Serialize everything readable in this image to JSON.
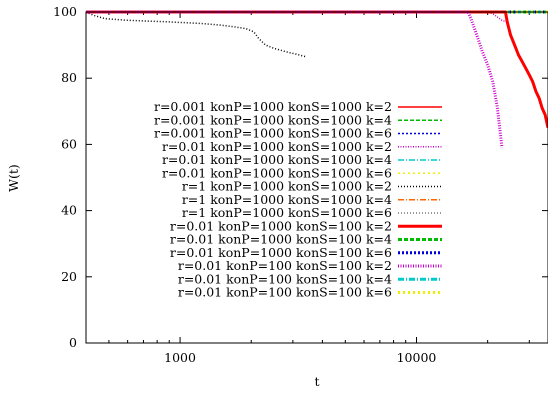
{
  "chart_data": {
    "type": "line",
    "xlabel": "t",
    "ylabel": "W(t)",
    "xscale": "log",
    "xlim": [
      400,
      36000
    ],
    "ylim": [
      0,
      100
    ],
    "x_ticks": [
      {
        "value": 1000,
        "label": "1000"
      },
      {
        "value": 10000,
        "label": "10000"
      }
    ],
    "y_ticks": [
      {
        "value": 0,
        "label": "0"
      },
      {
        "value": 20,
        "label": "20"
      },
      {
        "value": 40,
        "label": "40"
      },
      {
        "value": 60,
        "label": "60"
      },
      {
        "value": 80,
        "label": "80"
      },
      {
        "value": 100,
        "label": "100"
      }
    ],
    "legend_position": "center-right",
    "series": [
      {
        "name": "r=0.001 konP=1000 konS=1000 k=2",
        "color": "#ff0000",
        "dash": "",
        "width": 1.5,
        "x": [
          400,
          36000
        ],
        "y": [
          100,
          100
        ]
      },
      {
        "name": "r=0.001 konP=1000 konS=1000 k=4",
        "color": "#00bb00",
        "dash": "4,2",
        "width": 1.5,
        "x": [
          400,
          36000
        ],
        "y": [
          100,
          100
        ]
      },
      {
        "name": "r=0.001 konP=1000 konS=1000 k=6",
        "color": "#0000dd",
        "dash": "2,2",
        "width": 1.5,
        "x": [
          400,
          36000
        ],
        "y": [
          100,
          100
        ]
      },
      {
        "name": "r=0.01 konP=1000 konS=1000 k=2",
        "color": "#cc00cc",
        "dash": "1,1.5",
        "width": 1.5,
        "x": [
          400,
          20000,
          21000,
          22000,
          23000,
          24000
        ],
        "y": [
          100,
          100,
          99.5,
          98.5,
          97.5,
          97
        ]
      },
      {
        "name": "r=0.01 konP=1000 konS=1000 k=4",
        "color": "#00cccc",
        "dash": "6,2,1,2",
        "width": 1.5,
        "x": [
          400,
          36000
        ],
        "y": [
          100,
          100
        ]
      },
      {
        "name": "r=0.01 konP=1000 konS=1000 k=6",
        "color": "#eeee00",
        "dash": "2,3",
        "width": 1.5,
        "x": [
          400,
          36000
        ],
        "y": [
          100,
          100
        ]
      },
      {
        "name": "r=1 konP=1000 konS=1000 k=2",
        "color": "#000000",
        "dash": "1,2",
        "width": 1.5,
        "x": [
          400,
          430,
          480,
          600,
          900,
          1250,
          1500,
          1700,
          1900,
          2050,
          2150,
          2300,
          2500,
          2800,
          3000,
          3200,
          3400
        ],
        "y": [
          100,
          99,
          98,
          97.5,
          97,
          96.5,
          96,
          95.5,
          95,
          94,
          92,
          90,
          89,
          88,
          87.5,
          87,
          86.5
        ]
      },
      {
        "name": "r=1 konP=1000 konS=1000 k=4",
        "color": "#ff6600",
        "dash": "6,2,1,2",
        "width": 1.5,
        "x": [
          400,
          36000
        ],
        "y": [
          100,
          100
        ]
      },
      {
        "name": "r=1 konP=1000 konS=1000 k=6",
        "color": "#777777",
        "dash": "1,2",
        "width": 1.5,
        "x": [
          400,
          36000
        ],
        "y": [
          100,
          100
        ]
      },
      {
        "name": "r=0.01 konP=1000 konS=100 k=2",
        "color": "#ff0000",
        "dash": "",
        "width": 3,
        "x": [
          400,
          23800,
          24200,
          25000,
          26000,
          27000,
          28000,
          29000,
          30000,
          31000,
          32000,
          33000,
          34000,
          35000,
          36000
        ],
        "y": [
          100,
          100,
          97,
          93,
          90,
          87,
          85,
          83,
          81,
          79,
          76,
          74,
          71,
          69,
          65
        ]
      },
      {
        "name": "r=0.01 konP=1000 konS=100 k=4",
        "color": "#00bb00",
        "dash": "4,2",
        "width": 3,
        "x": [
          400,
          36000
        ],
        "y": [
          100,
          100
        ]
      },
      {
        "name": "r=0.01 konP=1000 konS=100 k=6",
        "color": "#0000dd",
        "dash": "2,2",
        "width": 3,
        "x": [
          400,
          36000
        ],
        "y": [
          100,
          100
        ]
      },
      {
        "name": "r=0.01 konP=100 konS=100 k=2",
        "color": "#cc00cc",
        "dash": "1,1.5",
        "width": 3,
        "x": [
          400,
          16500,
          17000,
          18000,
          19000,
          20000,
          21000,
          21500,
          22000,
          22500,
          23000
        ],
        "y": [
          100,
          100,
          98,
          93,
          88,
          84,
          79,
          75,
          71,
          65,
          59
        ]
      },
      {
        "name": "r=0.01 konP=100 konS=100 k=4",
        "color": "#00cccc",
        "dash": "6,2,1,2",
        "width": 3,
        "x": [
          400,
          36000
        ],
        "y": [
          100,
          100
        ]
      },
      {
        "name": "r=0.01 konP=100 konS=100 k=6",
        "color": "#eeee00",
        "dash": "2,3",
        "width": 3,
        "x": [
          400,
          36000
        ],
        "y": [
          100,
          100
        ]
      }
    ]
  }
}
